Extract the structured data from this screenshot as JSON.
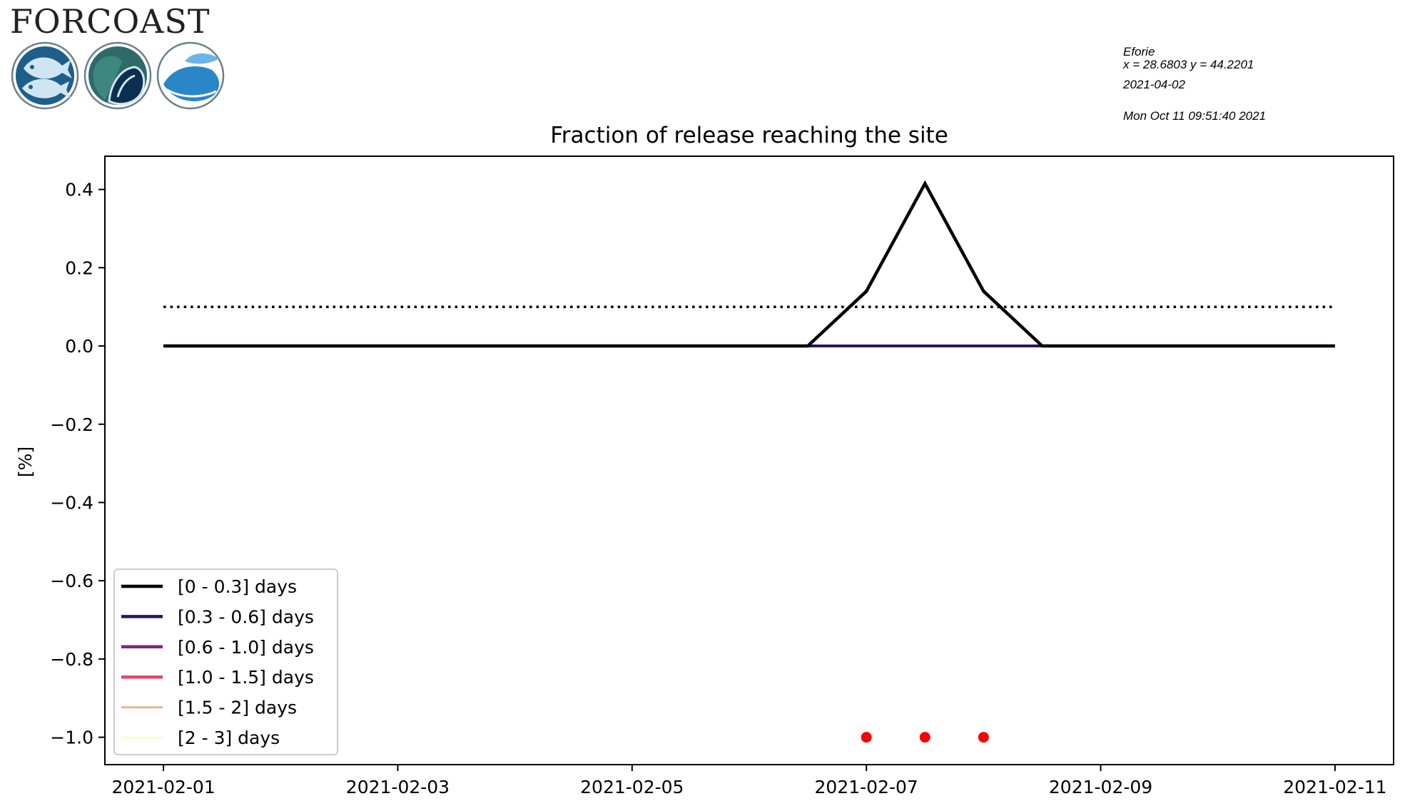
{
  "brand": {
    "name": "FORCOAST"
  },
  "info": {
    "site": "Eforie",
    "coords": "x = 28.6803 y = 44.2201",
    "date": "2021-04-02",
    "generated": "Mon Oct 11 09:51:40 2021"
  },
  "chart_data": {
    "type": "line",
    "title": "Fraction of release reaching the site",
    "xlabel": "",
    "ylabel": "[%]",
    "x": [
      "2021-02-01",
      "2021-02-01T12:00",
      "2021-02-02",
      "2021-02-02T12:00",
      "2021-02-03",
      "2021-02-03T12:00",
      "2021-02-04",
      "2021-02-04T12:00",
      "2021-02-05",
      "2021-02-05T12:00",
      "2021-02-06",
      "2021-02-06T12:00",
      "2021-02-07",
      "2021-02-07T12:00",
      "2021-02-08",
      "2021-02-08T12:00",
      "2021-02-09",
      "2021-02-09T12:00",
      "2021-02-10",
      "2021-02-10T12:00",
      "2021-02-11"
    ],
    "xlim": [
      "2021-01-31T12:00",
      "2021-02-11T12:00"
    ],
    "ylim": [
      -1.07,
      0.485
    ],
    "xticks": [
      "2021-02-01",
      "2021-02-03",
      "2021-02-05",
      "2021-02-07",
      "2021-02-09",
      "2021-02-11"
    ],
    "yticks": [
      0.4,
      0.2,
      0.0,
      -0.2,
      -0.4,
      -0.6,
      -0.8,
      -1.0
    ],
    "ytick_labels": [
      "0.4",
      "0.2",
      "0.0",
      "−0.2",
      "−0.4",
      "−0.6",
      "−0.8",
      "−1.0"
    ],
    "series": [
      {
        "name": "[0 - 0.3] days",
        "color": "#000000",
        "values": [
          0,
          0,
          0,
          0,
          0,
          0,
          0,
          0,
          0,
          0,
          0,
          0,
          0.14,
          0.415,
          0.14,
          0,
          0,
          0,
          0,
          0,
          0
        ]
      },
      {
        "name": "[0.3 - 0.6] days",
        "color": "#2c115f",
        "values": [
          0,
          0,
          0,
          0,
          0,
          0,
          0,
          0,
          0,
          0,
          0,
          0,
          0,
          0,
          0,
          0,
          0,
          0,
          0,
          0,
          0
        ]
      },
      {
        "name": "[0.6 - 1.0] days",
        "color": "#822681",
        "values": [
          0,
          0,
          0,
          0,
          0,
          0,
          0,
          0,
          0,
          0,
          0,
          0,
          0,
          0,
          0,
          0,
          0,
          0,
          0,
          0,
          0
        ]
      },
      {
        "name": "[1.0 - 1.5] days",
        "color": "#e5466b",
        "values": [
          0,
          0,
          0,
          0,
          0,
          0,
          0,
          0,
          0,
          0,
          0,
          0,
          0,
          0,
          0,
          0,
          0,
          0,
          0,
          0,
          0
        ]
      },
      {
        "name": "[1.5 - 2] days",
        "color": "#fca375",
        "values": [
          0,
          0,
          0,
          0,
          0,
          0,
          0,
          0,
          0,
          0,
          0,
          0,
          0,
          0,
          0,
          0,
          0,
          0,
          0,
          0,
          0
        ]
      },
      {
        "name": "[2 - 3] days",
        "color": "#fcfdbf",
        "values": [
          0,
          0,
          0,
          0,
          0,
          0,
          0,
          0,
          0,
          0,
          0,
          0,
          0,
          0,
          0,
          0,
          0,
          0,
          0,
          0,
          0
        ]
      }
    ],
    "threshold": {
      "value": 0.1,
      "x_from": "2021-02-01",
      "x_to": "2021-02-11",
      "style": "dotted",
      "color": "#000000"
    },
    "markers": {
      "color": "#ff0000",
      "y": -1.0,
      "x": [
        "2021-02-07",
        "2021-02-07T12:00",
        "2021-02-08"
      ]
    },
    "legend_position": "lower-left",
    "grid": false
  }
}
